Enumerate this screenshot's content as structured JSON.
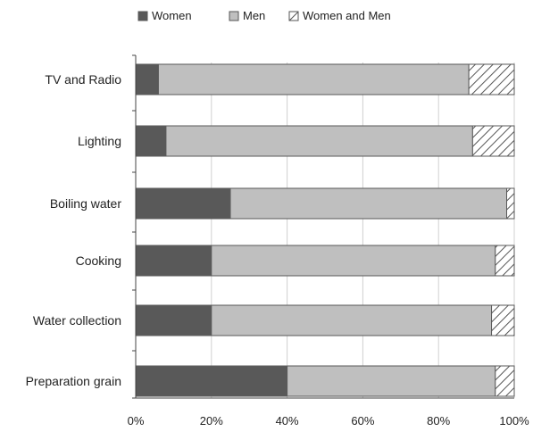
{
  "chart_data": {
    "type": "bar",
    "orientation": "horizontal",
    "stacked": true,
    "percent_stacked": true,
    "title": "",
    "xlabel": "",
    "ylabel": "",
    "xlim": [
      0,
      100
    ],
    "x_ticks": [
      0,
      20,
      40,
      60,
      80,
      100
    ],
    "x_tick_labels": [
      "0%",
      "20%",
      "40%",
      "60%",
      "80%",
      "100%"
    ],
    "grid": "vertical",
    "legend_position": "top-center",
    "categories": [
      "TV and Radio",
      "Lighting",
      "Boiling water",
      "Cooking",
      "Water collection",
      "Preparation grain"
    ],
    "series": [
      {
        "name": "Women",
        "values": [
          6,
          8,
          25,
          20,
          20,
          40
        ],
        "color": "#595959",
        "pattern": "solid"
      },
      {
        "name": "Men",
        "values": [
          82,
          81,
          73,
          75,
          74,
          55
        ],
        "color": "#bfbfbf",
        "pattern": "solid"
      },
      {
        "name": "Women and Men",
        "values": [
          12,
          11,
          2,
          5,
          6,
          5
        ],
        "color": "#ffffff",
        "pattern": "diagonal-hatch"
      }
    ]
  }
}
